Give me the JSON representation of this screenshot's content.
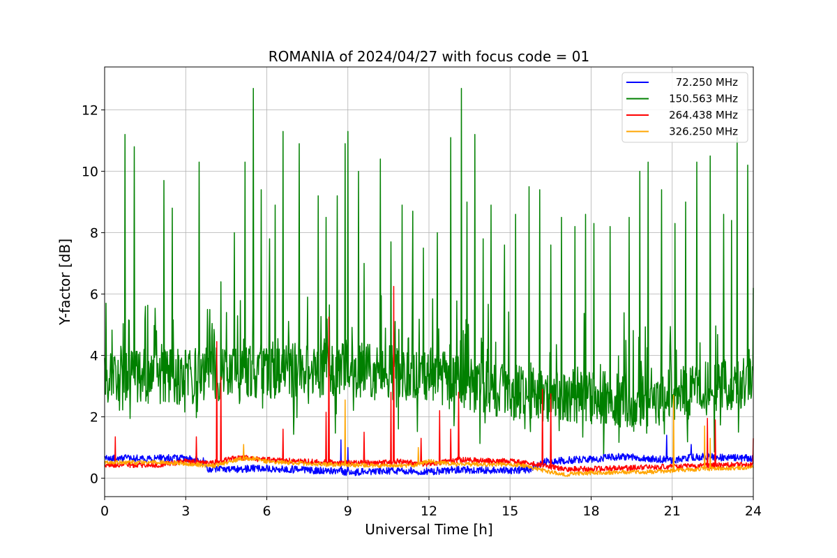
{
  "chart_data": {
    "type": "line",
    "title": "ROMANIA of 2024/04/27 with focus code = 01",
    "xlabel": "Universal Time [h]",
    "ylabel": "Y-factor [dB]",
    "xlim": [
      0,
      24
    ],
    "ylim": [
      -0.6,
      13.4
    ],
    "xticks": [
      0,
      3,
      6,
      9,
      12,
      15,
      18,
      21,
      24
    ],
    "yticks": [
      0,
      2,
      4,
      6,
      8,
      10,
      12
    ],
    "grid": true,
    "legend_position": "top-right",
    "series": [
      {
        "name": " 72.250 MHz",
        "color": "#0000ff",
        "noise": 0.12,
        "baseline": [
          [
            0,
            0.65
          ],
          [
            3,
            0.65
          ],
          [
            3.7,
            0.55
          ],
          [
            3.8,
            0.28
          ],
          [
            6,
            0.32
          ],
          [
            8,
            0.25
          ],
          [
            9,
            0.18
          ],
          [
            11,
            0.25
          ],
          [
            12,
            0.22
          ],
          [
            13,
            0.28
          ],
          [
            15,
            0.25
          ],
          [
            15.8,
            0.3
          ],
          [
            16.3,
            0.55
          ],
          [
            18,
            0.62
          ],
          [
            19,
            0.7
          ],
          [
            20,
            0.65
          ],
          [
            21,
            0.6
          ],
          [
            22,
            0.7
          ],
          [
            24,
            0.65
          ]
        ],
        "spikes": [
          [
            8.75,
            1.25
          ],
          [
            9.0,
            1.0
          ],
          [
            20.8,
            1.4
          ],
          [
            21.7,
            1.1
          ]
        ]
      },
      {
        "name": "150.563 MHz",
        "color": "#008000",
        "noise": 0.9,
        "baseline": [
          [
            0,
            3.3
          ],
          [
            3,
            3.3
          ],
          [
            4,
            3.4
          ],
          [
            6,
            3.5
          ],
          [
            9,
            3.5
          ],
          [
            12,
            3.4
          ],
          [
            13.5,
            3.0
          ],
          [
            15,
            2.8
          ],
          [
            17,
            2.7
          ],
          [
            19,
            2.6
          ],
          [
            20,
            2.5
          ],
          [
            22,
            2.9
          ],
          [
            24,
            3.1
          ]
        ],
        "spikes": [
          [
            0.05,
            5.7
          ],
          [
            0.75,
            11.2
          ],
          [
            1.1,
            10.8
          ],
          [
            1.5,
            5.6
          ],
          [
            2.2,
            9.7
          ],
          [
            2.5,
            8.8
          ],
          [
            3.5,
            10.3
          ],
          [
            3.8,
            5.5
          ],
          [
            4.3,
            6.4
          ],
          [
            4.5,
            5.4
          ],
          [
            4.8,
            8.0
          ],
          [
            5.2,
            10.3
          ],
          [
            5.5,
            12.7
          ],
          [
            5.8,
            9.4
          ],
          [
            6.1,
            7.8
          ],
          [
            6.3,
            8.9
          ],
          [
            6.6,
            11.3
          ],
          [
            7.2,
            10.9
          ],
          [
            7.5,
            5.9
          ],
          [
            7.9,
            9.2
          ],
          [
            8.2,
            8.5
          ],
          [
            8.6,
            9.2
          ],
          [
            8.9,
            10.9
          ],
          [
            9.0,
            11.3
          ],
          [
            9.4,
            10.0
          ],
          [
            9.6,
            7.0
          ],
          [
            10.2,
            10.4
          ],
          [
            10.6,
            7.7
          ],
          [
            11.0,
            8.9
          ],
          [
            11.4,
            8.7
          ],
          [
            11.8,
            7.5
          ],
          [
            12.3,
            8.0
          ],
          [
            12.8,
            11.1
          ],
          [
            13.2,
            12.7
          ],
          [
            13.4,
            9.0
          ],
          [
            13.7,
            11.2
          ],
          [
            14.0,
            7.8
          ],
          [
            14.3,
            8.9
          ],
          [
            14.8,
            7.6
          ],
          [
            15.2,
            8.6
          ],
          [
            15.7,
            9.5
          ],
          [
            16.1,
            9.4
          ],
          [
            16.5,
            7.6
          ],
          [
            16.9,
            8.5
          ],
          [
            17.4,
            8.2
          ],
          [
            17.8,
            8.6
          ],
          [
            18.1,
            8.3
          ],
          [
            18.7,
            8.2
          ],
          [
            19.4,
            8.5
          ],
          [
            19.8,
            10.0
          ],
          [
            20.1,
            10.3
          ],
          [
            20.6,
            9.4
          ],
          [
            21.1,
            8.3
          ],
          [
            21.5,
            9.0
          ],
          [
            21.9,
            10.3
          ],
          [
            22.4,
            10.5
          ],
          [
            22.9,
            8.6
          ],
          [
            23.2,
            8.4
          ],
          [
            23.4,
            11.1
          ],
          [
            23.8,
            10.2
          ],
          [
            24.0,
            6.2
          ]
        ]
      },
      {
        "name": "264.438 MHz",
        "color": "#ff0000",
        "noise": 0.09,
        "baseline": [
          [
            0,
            0.45
          ],
          [
            2,
            0.42
          ],
          [
            3,
            0.55
          ],
          [
            4,
            0.5
          ],
          [
            5,
            0.68
          ],
          [
            6,
            0.6
          ],
          [
            8,
            0.52
          ],
          [
            10,
            0.5
          ],
          [
            11,
            0.55
          ],
          [
            12,
            0.45
          ],
          [
            13,
            0.6
          ],
          [
            15,
            0.55
          ],
          [
            16,
            0.45
          ],
          [
            17,
            0.3
          ],
          [
            18,
            0.3
          ],
          [
            20,
            0.35
          ],
          [
            22,
            0.4
          ],
          [
            24,
            0.45
          ]
        ],
        "spikes": [
          [
            0.4,
            1.35
          ],
          [
            3.4,
            1.35
          ],
          [
            4.15,
            4.45
          ],
          [
            4.3,
            3.3
          ],
          [
            6.6,
            1.6
          ],
          [
            8.2,
            2.15
          ],
          [
            8.3,
            5.25
          ],
          [
            9.6,
            1.5
          ],
          [
            10.6,
            2.8
          ],
          [
            10.7,
            6.25
          ],
          [
            11.7,
            1.3
          ],
          [
            12.4,
            2.2
          ],
          [
            12.8,
            1.6
          ],
          [
            13.1,
            2.8
          ],
          [
            16.2,
            2.9
          ],
          [
            16.5,
            2.75
          ],
          [
            22.3,
            1.95
          ],
          [
            22.6,
            1.9
          ],
          [
            24.0,
            1.3
          ]
        ]
      },
      {
        "name": "326.250 MHz",
        "color": "#ffa500",
        "noise": 0.07,
        "baseline": [
          [
            0,
            0.5
          ],
          [
            2,
            0.52
          ],
          [
            3,
            0.48
          ],
          [
            4,
            0.4
          ],
          [
            5,
            0.62
          ],
          [
            5.5,
            0.65
          ],
          [
            6,
            0.55
          ],
          [
            8,
            0.45
          ],
          [
            10,
            0.42
          ],
          [
            11.5,
            0.42
          ],
          [
            12,
            0.55
          ],
          [
            13,
            0.45
          ],
          [
            15,
            0.45
          ],
          [
            15.6,
            0.4
          ],
          [
            16.2,
            0.25
          ],
          [
            17,
            0.12
          ],
          [
            18,
            0.18
          ],
          [
            20,
            0.2
          ],
          [
            22,
            0.3
          ],
          [
            24,
            0.35
          ]
        ],
        "spikes": [
          [
            5.15,
            1.1
          ],
          [
            8.9,
            2.55
          ],
          [
            11.6,
            1.0
          ],
          [
            21.05,
            2.7
          ],
          [
            22.2,
            1.7
          ],
          [
            22.4,
            1.3
          ]
        ]
      }
    ]
  }
}
